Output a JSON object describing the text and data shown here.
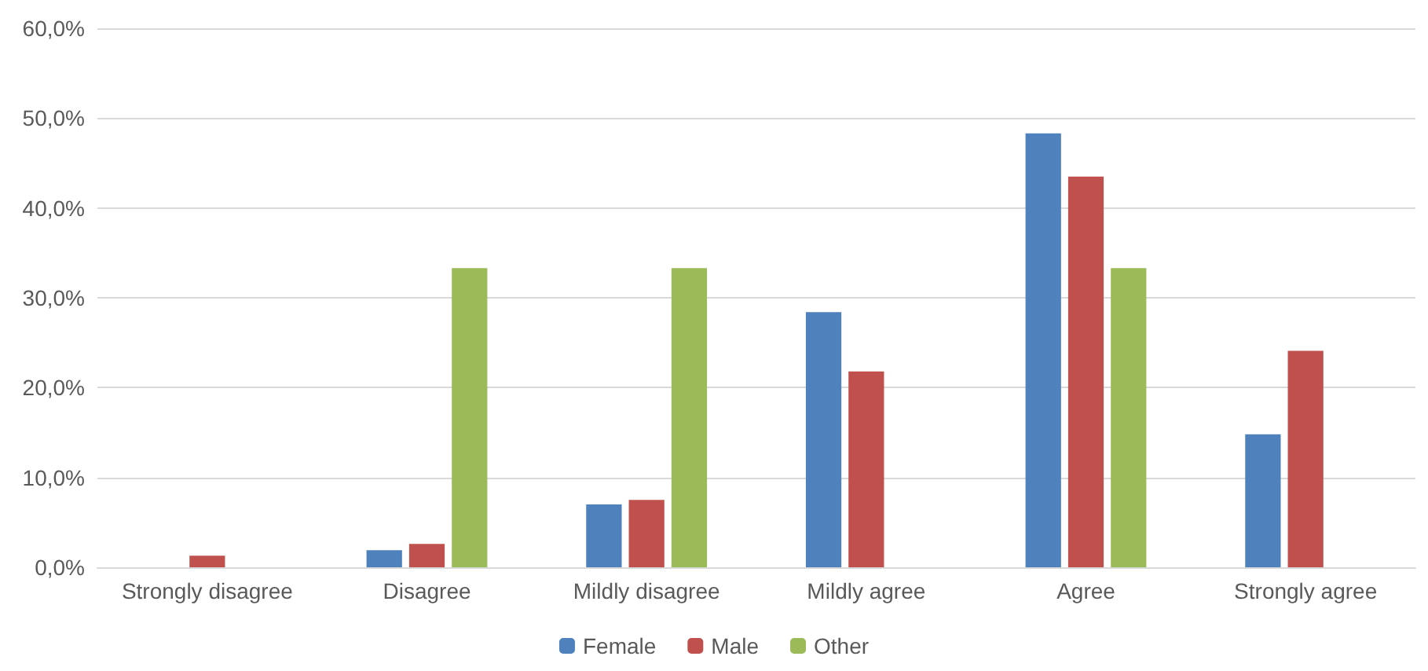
{
  "chart_data": {
    "type": "bar",
    "categories": [
      "Strongly disagree",
      "Disagree",
      "Mildly disagree",
      "Mildly agree",
      "Agree",
      "Strongly agree"
    ],
    "series": [
      {
        "name": "Female",
        "color": "#4f81bd",
        "values": [
          0,
          1.9,
          7.0,
          28.4,
          48.3,
          14.8
        ]
      },
      {
        "name": "Male",
        "color": "#c0504d",
        "values": [
          1.3,
          2.6,
          7.5,
          21.8,
          43.5,
          24.1
        ]
      },
      {
        "name": "Other",
        "color": "#9bbb59",
        "values": [
          0,
          33.3,
          33.3,
          0,
          33.3,
          0
        ]
      }
    ],
    "ylim": [
      0,
      60
    ],
    "yticks": [
      {
        "value": 0,
        "label": "0,0%"
      },
      {
        "value": 10,
        "label": "10,0%"
      },
      {
        "value": 20,
        "label": "20,0%"
      },
      {
        "value": 30,
        "label": "30,0%"
      },
      {
        "value": 40,
        "label": "40,0%"
      },
      {
        "value": 50,
        "label": "50,0%"
      },
      {
        "value": 60,
        "label": "60,0%"
      }
    ],
    "grid": true,
    "legend": "bottom"
  }
}
